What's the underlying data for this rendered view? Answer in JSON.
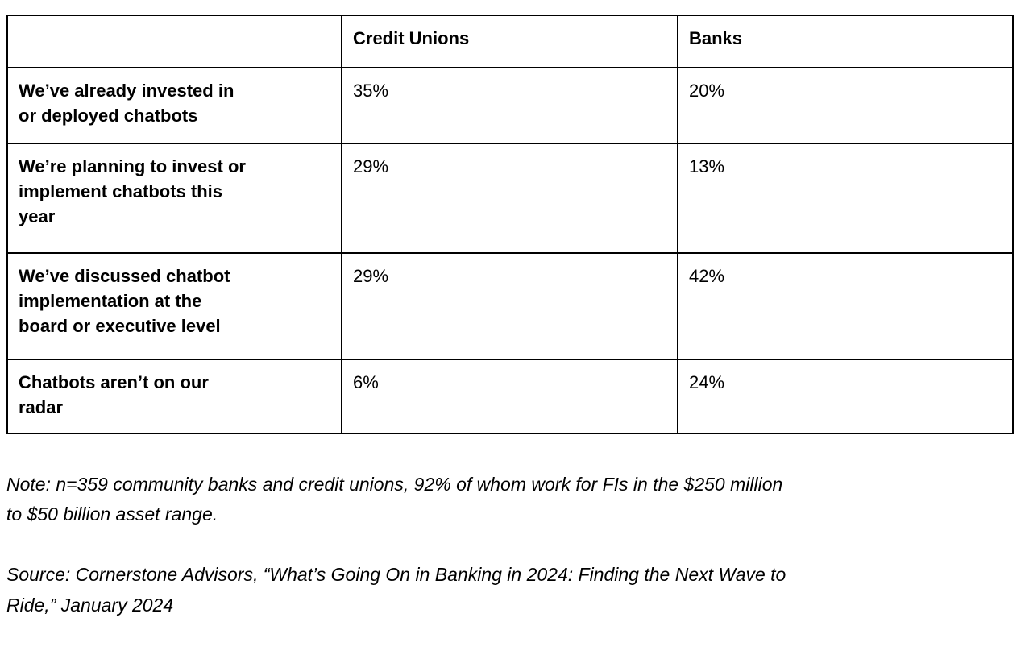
{
  "table": {
    "header": {
      "col0": "",
      "col1": "Credit Unions",
      "col2": "Banks"
    },
    "rows": [
      {
        "label": "We’ve already invested in\nor deployed chatbots",
        "credit_unions": "35%",
        "banks": "20%"
      },
      {
        "label": "We’re planning to invest or\nimplement chatbots this\nyear",
        "credit_unions": "29%",
        "banks": "13%"
      },
      {
        "label": "We’ve discussed chatbot\nimplementation at the\nboard or executive level",
        "credit_unions": "29%",
        "banks": "42%"
      },
      {
        "label": "Chatbots aren’t on our\nradar",
        "credit_unions": "6%",
        "banks": "24%"
      }
    ]
  },
  "footnotes": {
    "note": "Note: n=359 community banks and credit unions, 92% of whom work for FIs in the $250 million\nto $50 billion asset range.",
    "source": "Source: Cornerstone Advisors, “What’s Going On in Banking in 2024: Finding the Next Wave to\nRide,” January 2024"
  },
  "colors": {
    "border": "#000000",
    "text": "#000000",
    "background": "#ffffff"
  },
  "chart_data": {
    "type": "table",
    "title": "",
    "categories": [
      "We’ve already invested in or deployed chatbots",
      "We’re planning to invest or implement chatbots this year",
      "We’ve discussed chatbot implementation at the board or executive level",
      "Chatbots aren’t on our radar"
    ],
    "series": [
      {
        "name": "Credit Unions",
        "values": [
          35,
          29,
          29,
          6
        ]
      },
      {
        "name": "Banks",
        "values": [
          20,
          13,
          42,
          24
        ]
      }
    ],
    "value_unit": "%",
    "note": "Note: n=359 community banks and credit unions, 92% of whom work for FIs in the $250 million to $50 billion asset range.",
    "source": "Source: Cornerstone Advisors, “What’s Going On in Banking in 2024: Finding the Next Wave to Ride,” January 2024"
  }
}
